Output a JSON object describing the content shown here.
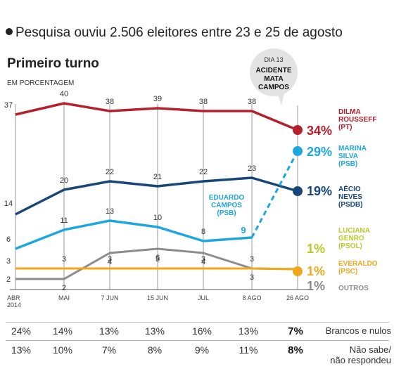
{
  "headline": "Pesquisa ouviu 2.506 eleitores entre 23 e 25 de agosto",
  "title": "Primeiro turno",
  "unit": "EM PORCENTAGEM",
  "annotation": {
    "line1": "DIA 13",
    "line2": "ACIDENTE",
    "line3": "MATA",
    "line4": "CAMPOS"
  },
  "chart_data": {
    "type": "line",
    "title": "Primeiro turno",
    "ylabel": "EM PORCENTAGEM",
    "categories": [
      "ABR 2014",
      "MAI",
      "7 JUN",
      "15 JUN",
      "JUL",
      "8 AGO",
      "26 AGO"
    ],
    "category_lines": [
      [
        "ABR",
        "2014"
      ],
      [
        "MAI"
      ],
      [
        "7 JUN"
      ],
      [
        "15 JUN"
      ],
      [
        "JUL"
      ],
      [
        "8 AGO"
      ],
      [
        "26 AGO"
      ]
    ],
    "series": [
      {
        "name": "DILMA ROUSSEFF",
        "party": "(PT)",
        "color": "#b5202b",
        "values": [
          37,
          40,
          38,
          39,
          38,
          38,
          34
        ]
      },
      {
        "name": "MARINA SILVA",
        "party": "(PSB)",
        "color": "#1ea6de",
        "values": [
          null,
          null,
          null,
          null,
          null,
          9,
          29
        ],
        "dashed": true
      },
      {
        "name": "AÉCIO NEVES",
        "party": "(PSDB)",
        "color": "#17467a",
        "values": [
          14,
          20,
          22,
          21,
          22,
          23,
          19
        ]
      },
      {
        "name": "EDUARDO CAMPOS",
        "party": "(PSB)",
        "color": "#1ea6de",
        "values": [
          6,
          11,
          13,
          10,
          8,
          9,
          null
        ]
      },
      {
        "name": "LUCIANA GENRO",
        "party": "(PSOL)",
        "color": "#b8c92a",
        "values": [
          null,
          null,
          null,
          null,
          null,
          null,
          1
        ]
      },
      {
        "name": "EVERALDO",
        "party": "(PSC)",
        "color": "#f0a71c",
        "values": [
          3,
          3,
          3,
          3,
          3,
          3,
          1
        ]
      },
      {
        "name": "OUTROS",
        "party": "",
        "color": "#8c8c8c",
        "values": [
          2,
          2,
          4,
          6,
          4,
          3,
          1
        ]
      }
    ],
    "final_labels": [
      "34%",
      "29%",
      "19%",
      "1%",
      "1%",
      "1%"
    ]
  },
  "table": {
    "rows": [
      {
        "label": "Brancos e nulos",
        "values": [
          "24%",
          "14%",
          "13%",
          "13%",
          "16%",
          "13%",
          "7%"
        ]
      },
      {
        "label_lines": [
          "Não sabe/",
          "não respondeu"
        ],
        "values": [
          "13%",
          "10%",
          "7%",
          "8%",
          "9%",
          "11%",
          "8%"
        ]
      }
    ]
  }
}
